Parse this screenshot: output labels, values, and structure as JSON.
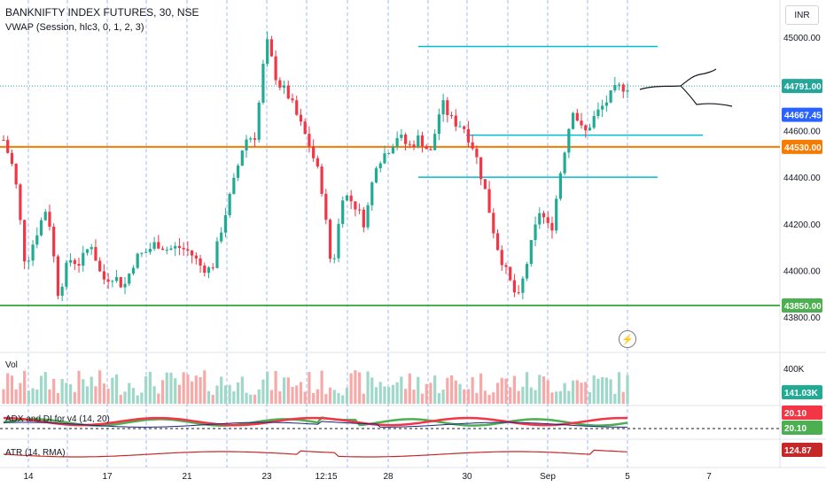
{
  "header": {
    "title": "BANKNIFTY INDEX FUTURES, 30, NSE",
    "indicator": "VWAP (Session, hlc3, 0, 1, 2, 3)",
    "currency": "INR"
  },
  "panes": {
    "volume_label": "Vol",
    "adx_label": "ADX and DI for v4 (14, 20)",
    "atr_label": "ATR (14, RMA)"
  },
  "icons": {
    "flash": "lightning-icon"
  },
  "colors": {
    "up": "#26a69a",
    "up_body": "#22ab94",
    "down": "#f23645",
    "vol_up": "#9fd8c8",
    "vol_down": "#f7a9a7",
    "grid_dash": "#2962ff",
    "orange_line": "#f57c00",
    "green_line": "#4caf50",
    "cyan_line": "#00bcd4",
    "price_dotted": "#26a69a",
    "label_blue": "#2962ff",
    "atr": "#c62828",
    "adx_green": "#4caf50",
    "adx_red": "#f23645",
    "adx_navy": "#1a237e"
  },
  "chart_data": {
    "type": "candlestick",
    "title": "BANKNIFTY INDEX FUTURES, 30, NSE",
    "x_ticks": [
      "14",
      "17",
      "21",
      "23",
      "12:15",
      "28",
      "30",
      "Sep",
      "5",
      "7"
    ],
    "price_axis": {
      "min": 43700,
      "max": 45100,
      "ticks": [
        45000.0,
        44600.0,
        44400.0,
        44200.0,
        44000.0,
        43800.0
      ]
    },
    "price_labels": [
      {
        "value": 44791.0,
        "text": "44791.00",
        "color": "#26a69a",
        "kind": "last price"
      },
      {
        "value": 44667.45,
        "text": "44667.45",
        "color": "#2962ff",
        "kind": "VWAP"
      },
      {
        "value": 44530.0,
        "text": "44530.00",
        "color": "#f57c00",
        "kind": "level"
      },
      {
        "value": 43850.0,
        "text": "43850.00",
        "color": "#4caf50",
        "kind": "level"
      }
    ],
    "horizontal_levels": [
      {
        "value": 44530,
        "color": "#f57c00",
        "extent": "full"
      },
      {
        "value": 43850,
        "color": "#4caf50",
        "extent": "full"
      },
      {
        "value": 44960,
        "color": "#00bcd4",
        "x_start": 28,
        "x_end": 38
      },
      {
        "value": 44580,
        "color": "#00bcd4",
        "x_start": 30,
        "x_end": 38
      },
      {
        "value": 44400,
        "color": "#00bcd4",
        "x_start": 28,
        "x_end": 38
      }
    ],
    "price_path": [
      [
        0,
        44560
      ],
      [
        1,
        44420
      ],
      [
        2,
        44020
      ],
      [
        3,
        44160
      ],
      [
        4,
        44280
      ],
      [
        5,
        43900
      ],
      [
        6,
        44050
      ],
      [
        7,
        44030
      ],
      [
        8,
        44120
      ],
      [
        9,
        43960
      ],
      [
        10,
        43980
      ],
      [
        11,
        43930
      ],
      [
        12,
        44050
      ],
      [
        13,
        44080
      ],
      [
        14,
        44120
      ],
      [
        15,
        44090
      ],
      [
        16,
        44100
      ],
      [
        17,
        44080
      ],
      [
        18,
        44020
      ],
      [
        19,
        44000
      ],
      [
        20,
        44200
      ],
      [
        21,
        44370
      ],
      [
        22,
        44560
      ],
      [
        23,
        44580
      ],
      [
        24,
        44990
      ],
      [
        25,
        44810
      ],
      [
        26,
        44750
      ],
      [
        27,
        44640
      ],
      [
        28,
        44530
      ],
      [
        29,
        44380
      ],
      [
        30,
        43990
      ],
      [
        31,
        44330
      ],
      [
        32,
        44290
      ],
      [
        33,
        44200
      ],
      [
        34,
        44460
      ],
      [
        35,
        44510
      ],
      [
        36,
        44580
      ],
      [
        37,
        44530
      ],
      [
        38,
        44570
      ],
      [
        39,
        44500
      ],
      [
        40,
        44720
      ],
      [
        41,
        44640
      ],
      [
        42,
        44620
      ],
      [
        43,
        44520
      ],
      [
        44,
        44340
      ],
      [
        45,
        44120
      ],
      [
        46,
        43980
      ],
      [
        47,
        43870
      ],
      [
        48,
        44070
      ],
      [
        49,
        44260
      ],
      [
        50,
        44160
      ],
      [
        51,
        44460
      ],
      [
        52,
        44700
      ],
      [
        53,
        44580
      ],
      [
        54,
        44660
      ],
      [
        55,
        44720
      ],
      [
        56,
        44780
      ],
      [
        57,
        44791
      ]
    ],
    "volume": {
      "axis_label": "400K",
      "last_value": "141.03K",
      "last_value_color": "#22ab94"
    },
    "adx": {
      "label": "ADX and DI for v4 (14, 20)",
      "values": [
        {
          "text": "20.10",
          "color": "#f23645"
        },
        {
          "text": "20.10",
          "color": "#4caf50"
        }
      ],
      "threshold": 20
    },
    "atr": {
      "label": "ATR (14, RMA)",
      "value": "124.87",
      "color": "#c62828"
    }
  }
}
